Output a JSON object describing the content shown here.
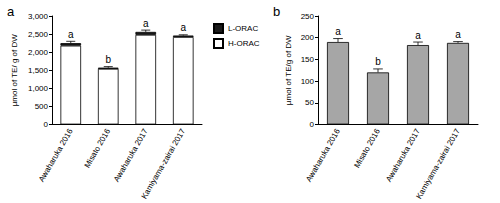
{
  "chart_data": [
    {
      "type": "bar",
      "title": "a",
      "stacked": true,
      "legend": "right",
      "grid": false,
      "categories": [
        "Awaharuka 2016",
        "Misato 2016",
        "Awaharuka 2017",
        "Kamiyama-zairai 2017"
      ],
      "series": [
        {
          "name": "H-ORAC",
          "color": "#ffffff",
          "values": [
            2180,
            1540,
            2480,
            2420
          ]
        },
        {
          "name": "L-ORAC",
          "color": "#1a1a1a",
          "values": [
            70,
            30,
            80,
            40
          ]
        }
      ],
      "errors": [
        50,
        30,
        50,
        20
      ],
      "significance": [
        "a",
        "b",
        "a",
        "a"
      ],
      "y_label": "µmol of TE/ g of DW",
      "ylim": [
        0,
        3000
      ],
      "yticks": [
        0,
        500,
        1000,
        1500,
        2000,
        2500,
        3000
      ]
    },
    {
      "type": "bar",
      "title": "b",
      "grid": false,
      "categories": [
        "Awaharuka 2016",
        "Misato 2016",
        "Awaharuka 2017",
        "Kamiyama-zairai 2017"
      ],
      "values": [
        190,
        120,
        183,
        188
      ],
      "color": "#a6a6a6",
      "errors": [
        8,
        8,
        7,
        3
      ],
      "significance": [
        "a",
        "b",
        "a",
        "a"
      ],
      "y_label": "µmol of TE/g of DW",
      "ylim": [
        0,
        250
      ],
      "yticks": [
        0,
        50,
        100,
        150,
        200,
        250
      ]
    }
  ]
}
